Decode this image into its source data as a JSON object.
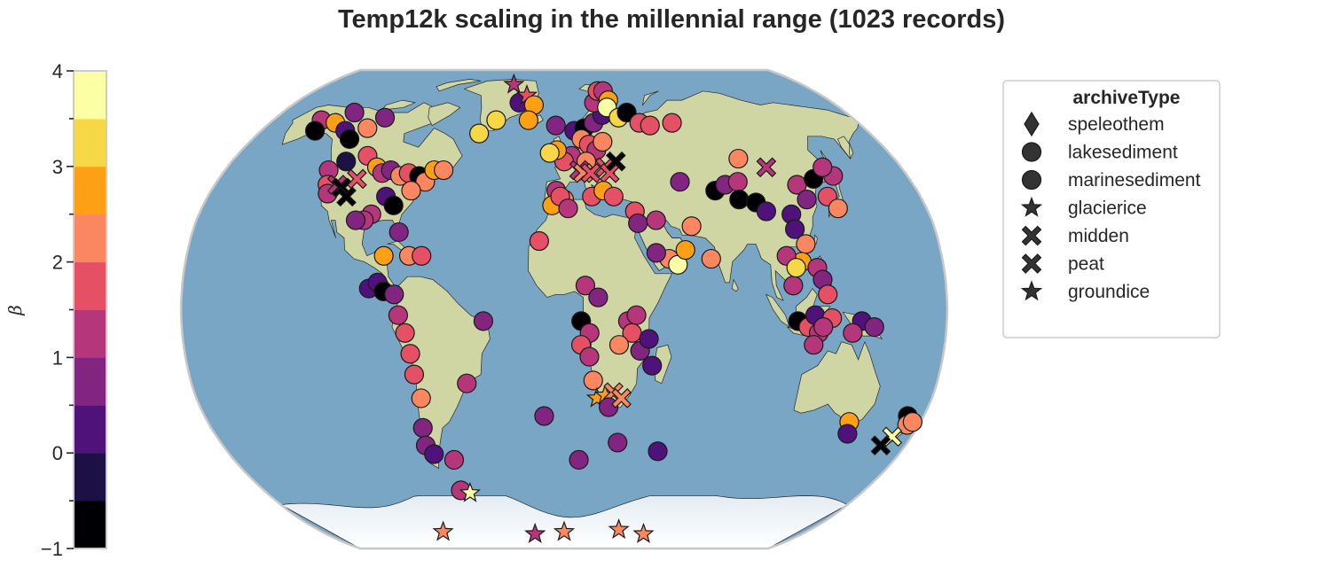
{
  "chart_data": {
    "type": "scatter",
    "title": "Temp12k scaling in the millennial range (1023 records)",
    "projection": "Robinson (world map with shaded relief)",
    "colorbar": {
      "label": "β",
      "ticks": [
        "−1",
        "0",
        "1",
        "2",
        "3",
        "4"
      ],
      "range": [
        -1,
        4
      ],
      "bin_width": 0.5,
      "colormap": "inferno (binned)",
      "colors": [
        "#000004",
        "#1c1044",
        "#4f127b",
        "#812581",
        "#b5367a",
        "#e55064",
        "#fb8761",
        "#fea016",
        "#f6d746",
        "#fcffa4"
      ]
    },
    "legend": {
      "title": "archiveType",
      "placement": "right",
      "entries": [
        {
          "label": "speleothem",
          "marker": "diamond"
        },
        {
          "label": "lakesediment",
          "marker": "circle"
        },
        {
          "label": "marinesediment",
          "marker": "circle"
        },
        {
          "label": "glacierice",
          "marker": "star"
        },
        {
          "label": "midden",
          "marker": "x"
        },
        {
          "label": "peat",
          "marker": "x"
        },
        {
          "label": "groundice",
          "marker": "star"
        }
      ]
    },
    "points": [
      {
        "lon": -150,
        "lat": 65,
        "beta": 1.2,
        "marker": "circle"
      },
      {
        "lon": -148,
        "lat": 61,
        "beta": -0.6,
        "marker": "circle"
      },
      {
        "lon": -140,
        "lat": 64,
        "beta": 2.8,
        "marker": "circle"
      },
      {
        "lon": -134,
        "lat": 68,
        "beta": 0.5,
        "marker": "circle"
      },
      {
        "lon": -130,
        "lat": 61,
        "beta": 0.3,
        "marker": "circle"
      },
      {
        "lon": -124,
        "lat": 58,
        "beta": -0.6,
        "marker": "circle"
      },
      {
        "lon": -118,
        "lat": 62,
        "beta": 2.2,
        "marker": "circle"
      },
      {
        "lon": -112,
        "lat": 66,
        "beta": 0.6,
        "marker": "circle"
      },
      {
        "lon": -108,
        "lat": 52,
        "beta": 1.8,
        "marker": "circle"
      },
      {
        "lon": -118,
        "lat": 50,
        "beta": -0.5,
        "marker": "circle"
      },
      {
        "lon": -125,
        "lat": 47,
        "beta": 1.3,
        "marker": "circle"
      },
      {
        "lon": -122,
        "lat": 42,
        "beta": 1.7,
        "marker": "circle"
      },
      {
        "lon": -120,
        "lat": 39,
        "beta": 1.4,
        "marker": "circle"
      },
      {
        "lon": -117,
        "lat": 42,
        "beta": 1.4,
        "marker": "x"
      },
      {
        "lon": -114,
        "lat": 41,
        "beta": -0.6,
        "marker": "x"
      },
      {
        "lon": -110,
        "lat": 38,
        "beta": -0.7,
        "marker": "x"
      },
      {
        "lon": -108,
        "lat": 44,
        "beta": 1.5,
        "marker": "x"
      },
      {
        "lon": -100,
        "lat": 48,
        "beta": 2.6,
        "marker": "circle"
      },
      {
        "lon": -96,
        "lat": 46,
        "beta": 1.3,
        "marker": "circle"
      },
      {
        "lon": -92,
        "lat": 47,
        "beta": 0.6,
        "marker": "circle"
      },
      {
        "lon": -86,
        "lat": 45,
        "beta": 2.3,
        "marker": "circle"
      },
      {
        "lon": -82,
        "lat": 46,
        "beta": 1.5,
        "marker": "circle"
      },
      {
        "lon": -76,
        "lat": 45,
        "beta": -0.7,
        "marker": "circle"
      },
      {
        "lon": -72,
        "lat": 43,
        "beta": 2.2,
        "marker": "circle"
      },
      {
        "lon": -69,
        "lat": 47,
        "beta": 2.6,
        "marker": "circle"
      },
      {
        "lon": -64,
        "lat": 47,
        "beta": 2.4,
        "marker": "circle"
      },
      {
        "lon": -90,
        "lat": 38,
        "beta": 0.4,
        "marker": "circle"
      },
      {
        "lon": -85,
        "lat": 35,
        "beta": -0.7,
        "marker": "circle"
      },
      {
        "lon": -95,
        "lat": 32,
        "beta": 1.3,
        "marker": "circle"
      },
      {
        "lon": -98,
        "lat": 30,
        "beta": 1.3,
        "marker": "circle"
      },
      {
        "lon": -102,
        "lat": 30,
        "beta": 0.6,
        "marker": "circle"
      },
      {
        "lon": -78,
        "lat": 40,
        "beta": 2.2,
        "marker": "circle"
      },
      {
        "lon": -80,
        "lat": 26,
        "beta": 0.5,
        "marker": "circle"
      },
      {
        "lon": -86,
        "lat": 18,
        "beta": 2.8,
        "marker": "circle"
      },
      {
        "lon": -74,
        "lat": 18,
        "beta": 2.3,
        "marker": "circle"
      },
      {
        "lon": -68,
        "lat": 18,
        "beta": 1.8,
        "marker": "circle"
      },
      {
        "lon": -92,
        "lat": 7,
        "beta": 0.4,
        "marker": "circle"
      },
      {
        "lon": -88,
        "lat": 9,
        "beta": 0.4,
        "marker": "circle"
      },
      {
        "lon": -85,
        "lat": 6,
        "beta": -0.6,
        "marker": "circle"
      },
      {
        "lon": -80,
        "lat": 5,
        "beta": 0.6,
        "marker": "circle"
      },
      {
        "lon": -78,
        "lat": -2,
        "beta": 1.3,
        "marker": "circle"
      },
      {
        "lon": -75,
        "lat": -8,
        "beta": 1.6,
        "marker": "circle"
      },
      {
        "lon": -73,
        "lat": -15,
        "beta": 1.7,
        "marker": "circle"
      },
      {
        "lon": -72,
        "lat": -22,
        "beta": 1.8,
        "marker": "circle"
      },
      {
        "lon": -70,
        "lat": -30,
        "beta": 2.0,
        "marker": "circle"
      },
      {
        "lon": -72,
        "lat": -40,
        "beta": 0.8,
        "marker": "circle"
      },
      {
        "lon": -73,
        "lat": -46,
        "beta": 0.5,
        "marker": "circle"
      },
      {
        "lon": -70,
        "lat": -49,
        "beta": 0.3,
        "marker": "circle"
      },
      {
        "lon": -60,
        "lat": -51,
        "beta": 1.3,
        "marker": "circle"
      },
      {
        "lon": -38,
        "lat": -4,
        "beta": 0.6,
        "marker": "circle"
      },
      {
        "lon": -47,
        "lat": -25,
        "beta": 1.0,
        "marker": "circle"
      },
      {
        "lon": -10,
        "lat": -36,
        "beta": 0.7,
        "marker": "circle"
      },
      {
        "lon": -62,
        "lat": -62,
        "beta": 1.3,
        "marker": "circle"
      },
      {
        "lon": -57,
        "lat": -63,
        "beta": 3.8,
        "marker": "star"
      },
      {
        "lon": -50,
        "lat": 60,
        "beta": 3.0,
        "marker": "circle"
      },
      {
        "lon": -42,
        "lat": 65,
        "beta": 3.0,
        "marker": "circle"
      },
      {
        "lon": -30,
        "lat": 72,
        "beta": 0.3,
        "marker": "circle"
      },
      {
        "lon": -38,
        "lat": 80,
        "beta": 1.2,
        "marker": "star"
      },
      {
        "lon": -26,
        "lat": 75,
        "beta": 1.7,
        "marker": "star"
      },
      {
        "lon": -20,
        "lat": 71,
        "beta": 2.8,
        "marker": "circle"
      },
      {
        "lon": -22,
        "lat": 65,
        "beta": 2.5,
        "marker": "circle"
      },
      {
        "lon": -5,
        "lat": 63,
        "beta": 0.6,
        "marker": "circle"
      },
      {
        "lon": 6,
        "lat": 61,
        "beta": 0.4,
        "marker": "circle"
      },
      {
        "lon": 12,
        "lat": 62,
        "beta": -0.6,
        "marker": "circle"
      },
      {
        "lon": 18,
        "lat": 64,
        "beta": 0.5,
        "marker": "circle"
      },
      {
        "lon": 24,
        "lat": 67,
        "beta": 0.3,
        "marker": "circle"
      },
      {
        "lon": 20,
        "lat": 72,
        "beta": 1.4,
        "marker": "circle"
      },
      {
        "lon": 24,
        "lat": 77,
        "beta": 1.6,
        "marker": "circle"
      },
      {
        "lon": 28,
        "lat": 77,
        "beta": 1.4,
        "marker": "circle"
      },
      {
        "lon": 30,
        "lat": 73,
        "beta": 2.9,
        "marker": "circle"
      },
      {
        "lon": 28,
        "lat": 70,
        "beta": 3.5,
        "marker": "circle"
      },
      {
        "lon": 34,
        "lat": 66,
        "beta": 3.0,
        "marker": "circle"
      },
      {
        "lon": 40,
        "lat": 68,
        "beta": -0.7,
        "marker": "circle"
      },
      {
        "lon": 46,
        "lat": 64,
        "beta": 1.5,
        "marker": "circle"
      },
      {
        "lon": 52,
        "lat": 63,
        "beta": 1.9,
        "marker": "circle"
      },
      {
        "lon": 66,
        "lat": 64,
        "beta": 1.8,
        "marker": "circle"
      },
      {
        "lon": 10,
        "lat": 58,
        "beta": 2.4,
        "marker": "circle"
      },
      {
        "lon": 14,
        "lat": 56,
        "beta": 1.7,
        "marker": "circle"
      },
      {
        "lon": 18,
        "lat": 54,
        "beta": 1.3,
        "marker": "circle"
      },
      {
        "lon": 22,
        "lat": 57,
        "beta": 2.0,
        "marker": "circle"
      },
      {
        "lon": 4,
        "lat": 52,
        "beta": 1.4,
        "marker": "circle"
      },
      {
        "lon": 0,
        "lat": 50,
        "beta": 1.8,
        "marker": "circle"
      },
      {
        "lon": -4,
        "lat": 54,
        "beta": 2.8,
        "marker": "circle"
      },
      {
        "lon": -8,
        "lat": 53,
        "beta": 3.0,
        "marker": "circle"
      },
      {
        "lon": 12,
        "lat": 50,
        "beta": 2.4,
        "marker": "circle"
      },
      {
        "lon": 8,
        "lat": 47,
        "beta": 1.2,
        "marker": "x"
      },
      {
        "lon": 10,
        "lat": 46,
        "beta": 2.4,
        "marker": "x"
      },
      {
        "lon": 14,
        "lat": 46,
        "beta": 1.8,
        "marker": "x"
      },
      {
        "lon": 22,
        "lat": 48,
        "beta": 1.5,
        "marker": "x"
      },
      {
        "lon": 24,
        "lat": 46,
        "beta": 1.8,
        "marker": "x"
      },
      {
        "lon": 28,
        "lat": 50,
        "beta": -0.6,
        "marker": "x"
      },
      {
        "lon": -4,
        "lat": 40,
        "beta": 1.2,
        "marker": "circle"
      },
      {
        "lon": 0,
        "lat": 37,
        "beta": 2.2,
        "marker": "circle"
      },
      {
        "lon": -6,
        "lat": 35,
        "beta": 2.5,
        "marker": "circle"
      },
      {
        "lon": -2,
        "lat": 38,
        "beta": 1.8,
        "marker": "circle"
      },
      {
        "lon": 2,
        "lat": 34,
        "beta": 1.3,
        "marker": "circle"
      },
      {
        "lon": 14,
        "lat": 38,
        "beta": 1.5,
        "marker": "circle"
      },
      {
        "lon": 20,
        "lat": 40,
        "beta": 2.6,
        "marker": "circle"
      },
      {
        "lon": 25,
        "lat": 38,
        "beta": 1.9,
        "marker": "circle"
      },
      {
        "lon": -12,
        "lat": 23,
        "beta": 1.8,
        "marker": "circle"
      },
      {
        "lon": 35,
        "lat": 33,
        "beta": 1.6,
        "marker": "circle"
      },
      {
        "lon": 36,
        "lat": 29,
        "beta": 0.5,
        "marker": "circle"
      },
      {
        "lon": 45,
        "lat": 30,
        "beta": 1.0,
        "marker": "circle"
      },
      {
        "lon": 50,
        "lat": 17,
        "beta": 2.2,
        "marker": "circle"
      },
      {
        "lon": 54,
        "lat": 15,
        "beta": 3.6,
        "marker": "circle"
      },
      {
        "lon": 58,
        "lat": 20,
        "beta": 2.5,
        "marker": "circle"
      },
      {
        "lon": 44,
        "lat": 19,
        "beta": 0.9,
        "marker": "circle"
      },
      {
        "lon": 62,
        "lat": 28,
        "beta": 2.2,
        "marker": "circle"
      },
      {
        "lon": 70,
        "lat": 17,
        "beta": 2.0,
        "marker": "circle"
      },
      {
        "lon": 10,
        "lat": 8,
        "beta": 1.0,
        "marker": "circle"
      },
      {
        "lon": 16,
        "lat": 4,
        "beta": 0.6,
        "marker": "circle"
      },
      {
        "lon": 8,
        "lat": -4,
        "beta": -0.6,
        "marker": "circle"
      },
      {
        "lon": 12,
        "lat": -8,
        "beta": 1.4,
        "marker": "circle"
      },
      {
        "lon": 8,
        "lat": -12,
        "beta": 1.9,
        "marker": "circle"
      },
      {
        "lon": 12,
        "lat": -16,
        "beta": 1.1,
        "marker": "circle"
      },
      {
        "lon": 14,
        "lat": -24,
        "beta": 2.3,
        "marker": "circle"
      },
      {
        "lon": 16,
        "lat": -30,
        "beta": 2.6,
        "marker": "star"
      },
      {
        "lon": 20,
        "lat": -29,
        "beta": 2.8,
        "marker": "star"
      },
      {
        "lon": 24,
        "lat": -28,
        "beta": 2.4,
        "marker": "x"
      },
      {
        "lon": 22,
        "lat": -33,
        "beta": 0.9,
        "marker": "circle"
      },
      {
        "lon": 28,
        "lat": -30,
        "beta": 2.2,
        "marker": "x"
      },
      {
        "lon": 30,
        "lat": -4,
        "beta": 1.3,
        "marker": "circle"
      },
      {
        "lon": 34,
        "lat": -2,
        "beta": 1.2,
        "marker": "circle"
      },
      {
        "lon": 32,
        "lat": -8,
        "beta": 1.5,
        "marker": "circle"
      },
      {
        "lon": 26,
        "lat": -12,
        "beta": 2.2,
        "marker": "circle"
      },
      {
        "lon": 36,
        "lat": -14,
        "beta": 0.6,
        "marker": "circle"
      },
      {
        "lon": 40,
        "lat": -10,
        "beta": 0.4,
        "marker": "circle"
      },
      {
        "lon": 42,
        "lat": -19,
        "beta": 0.4,
        "marker": "circle"
      },
      {
        "lon": 28,
        "lat": -45,
        "beta": 0.5,
        "marker": "circle"
      },
      {
        "lon": 50,
        "lat": -48,
        "beta": 0.4,
        "marker": "circle"
      },
      {
        "lon": 8,
        "lat": -51,
        "beta": 0.6,
        "marker": "circle"
      },
      {
        "lon": 60,
        "lat": 43,
        "beta": 0.5,
        "marker": "circle"
      },
      {
        "lon": 77,
        "lat": 40,
        "beta": -0.6,
        "marker": "circle"
      },
      {
        "lon": 83,
        "lat": 42,
        "beta": 0.6,
        "marker": "circle"
      },
      {
        "lon": 90,
        "lat": 43,
        "beta": 1.2,
        "marker": "circle"
      },
      {
        "lon": 88,
        "lat": 37,
        "beta": -0.6,
        "marker": "circle"
      },
      {
        "lon": 96,
        "lat": 36,
        "beta": -0.7,
        "marker": "circle"
      },
      {
        "lon": 100,
        "lat": 33,
        "beta": 0.4,
        "marker": "circle"
      },
      {
        "lon": 95,
        "lat": 51,
        "beta": 2.0,
        "marker": "circle"
      },
      {
        "lon": 108,
        "lat": 48,
        "beta": 1.3,
        "marker": "x"
      },
      {
        "lon": 120,
        "lat": 42,
        "beta": 1.3,
        "marker": "circle"
      },
      {
        "lon": 122,
        "lat": 37,
        "beta": 0.6,
        "marker": "circle"
      },
      {
        "lon": 130,
        "lat": 44,
        "beta": -0.6,
        "marker": "circle"
      },
      {
        "lon": 133,
        "lat": 38,
        "beta": 1.8,
        "marker": "circle"
      },
      {
        "lon": 136,
        "lat": 34,
        "beta": 2.1,
        "marker": "circle"
      },
      {
        "lon": 141,
        "lat": 45,
        "beta": 1.2,
        "marker": "circle"
      },
      {
        "lon": 138,
        "lat": 48,
        "beta": 1.0,
        "marker": "circle"
      },
      {
        "lon": 112,
        "lat": 32,
        "beta": 0.4,
        "marker": "circle"
      },
      {
        "lon": 112,
        "lat": 27,
        "beta": 0.4,
        "marker": "circle"
      },
      {
        "lon": 116,
        "lat": 22,
        "beta": 2.0,
        "marker": "circle"
      },
      {
        "lon": 113,
        "lat": 16,
        "beta": 2.5,
        "marker": "circle"
      },
      {
        "lon": 106,
        "lat": 18,
        "beta": 1.3,
        "marker": "circle"
      },
      {
        "lon": 108,
        "lat": 8,
        "beta": 1.3,
        "marker": "circle"
      },
      {
        "lon": 110,
        "lat": 14,
        "beta": 3.0,
        "marker": "circle"
      },
      {
        "lon": 120,
        "lat": 14,
        "beta": 1.0,
        "marker": "circle"
      },
      {
        "lon": 122,
        "lat": 10,
        "beta": 0.6,
        "marker": "circle"
      },
      {
        "lon": 124,
        "lat": 5,
        "beta": 1.6,
        "marker": "circle"
      },
      {
        "lon": 110,
        "lat": -4,
        "beta": -0.6,
        "marker": "circle"
      },
      {
        "lon": 115,
        "lat": -6,
        "beta": 1.8,
        "marker": "circle"
      },
      {
        "lon": 118,
        "lat": -2,
        "beta": 0.4,
        "marker": "circle"
      },
      {
        "lon": 120,
        "lat": -8,
        "beta": 1.3,
        "marker": "circle"
      },
      {
        "lon": 118,
        "lat": -12,
        "beta": 1.2,
        "marker": "circle"
      },
      {
        "lon": 126,
        "lat": -3,
        "beta": 1.6,
        "marker": "circle"
      },
      {
        "lon": 122,
        "lat": -6,
        "beta": 1.1,
        "marker": "circle"
      },
      {
        "lon": 140,
        "lat": -4,
        "beta": 0.4,
        "marker": "circle"
      },
      {
        "lon": 146,
        "lat": -6,
        "beta": 0.5,
        "marker": "circle"
      },
      {
        "lon": 136,
        "lat": -8,
        "beta": 1.2,
        "marker": "circle"
      },
      {
        "lon": 144,
        "lat": -38,
        "beta": 2.9,
        "marker": "circle"
      },
      {
        "lon": 146,
        "lat": -42,
        "beta": 0.4,
        "marker": "circle"
      },
      {
        "lon": 172,
        "lat": -36,
        "beta": -0.6,
        "marker": "circle"
      },
      {
        "lon": 174,
        "lat": -39,
        "beta": 2.4,
        "marker": "circle"
      },
      {
        "lon": 170,
        "lat": -43,
        "beta": 3.8,
        "marker": "x"
      },
      {
        "lon": 167,
        "lat": -46,
        "beta": -0.6,
        "marker": "x"
      },
      {
        "lon": 176,
        "lat": -38,
        "beta": 2.1,
        "marker": "circle"
      },
      {
        "lon": -90,
        "lat": -79,
        "beta": 2.2,
        "marker": "star"
      },
      {
        "lon": -22,
        "lat": -80,
        "beta": 1.3,
        "marker": "star"
      },
      {
        "lon": 0,
        "lat": -79,
        "beta": 2.2,
        "marker": "star"
      },
      {
        "lon": 40,
        "lat": -78,
        "beta": 2.2,
        "marker": "star"
      },
      {
        "lon": 60,
        "lat": -80,
        "beta": 2.2,
        "marker": "star"
      }
    ]
  }
}
